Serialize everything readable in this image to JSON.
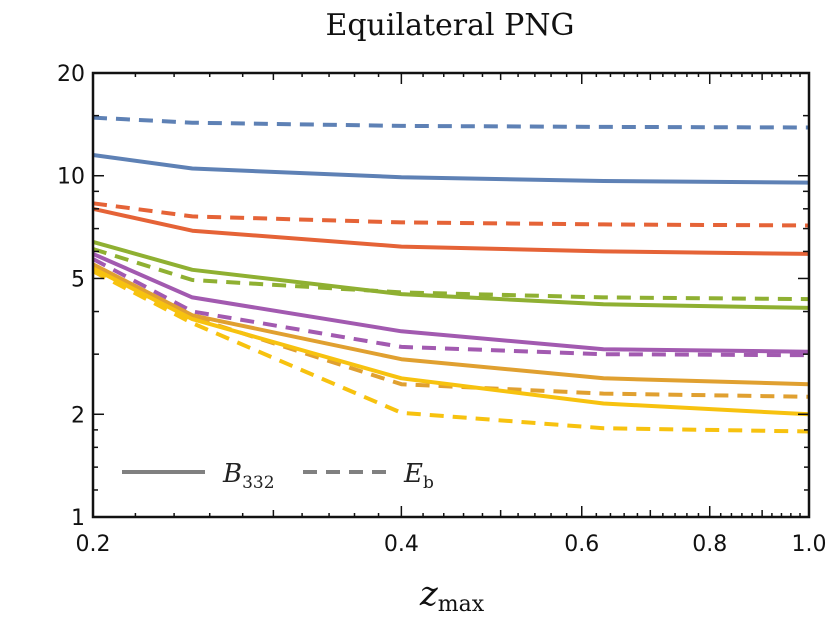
{
  "chart_data": {
    "type": "line",
    "title": "Equilateral PNG",
    "xlabel": "z",
    "xlabel_sub": "max",
    "ylabel": "",
    "xscale": "log",
    "yscale": "log",
    "xlim": [
      0.2,
      1.0
    ],
    "ylim": [
      1,
      20
    ],
    "x": [
      0.2,
      0.25,
      0.4,
      0.63,
      1.0
    ],
    "xticks": [
      0.2,
      0.4,
      0.6,
      0.8,
      1.0
    ],
    "xtick_labels": [
      "0.2",
      "0.4",
      "0.6",
      "0.8",
      "1.0"
    ],
    "yticks": [
      1,
      2,
      5,
      10,
      20
    ],
    "ytick_labels": [
      "1",
      "2",
      "5",
      "10",
      "20"
    ],
    "grid": false,
    "legend": {
      "placement": "bottom-left",
      "entries": [
        {
          "label": "B",
          "sub": "332",
          "style": "solid",
          "color": "#808080"
        },
        {
          "label": "E",
          "sub": "b",
          "style": "dashed",
          "color": "#808080"
        }
      ]
    },
    "series": [
      {
        "name": "blue B332",
        "color": "#5E81B5",
        "style": "solid",
        "values": [
          11.5,
          10.5,
          9.9,
          9.65,
          9.55
        ]
      },
      {
        "name": "blue Eb",
        "color": "#5E81B5",
        "style": "dashed",
        "values": [
          14.8,
          14.3,
          14.0,
          13.9,
          13.85
        ]
      },
      {
        "name": "red B332",
        "color": "#E56337",
        "style": "solid",
        "values": [
          8.0,
          6.9,
          6.2,
          6.0,
          5.9
        ]
      },
      {
        "name": "red Eb",
        "color": "#E56337",
        "style": "dashed",
        "values": [
          8.3,
          7.6,
          7.3,
          7.2,
          7.15
        ]
      },
      {
        "name": "green B332",
        "color": "#8FB032",
        "style": "solid",
        "values": [
          6.4,
          5.3,
          4.5,
          4.2,
          4.1
        ]
      },
      {
        "name": "green Eb",
        "color": "#8FB032",
        "style": "dashed",
        "values": [
          6.1,
          4.95,
          4.55,
          4.4,
          4.35
        ]
      },
      {
        "name": "purple B332",
        "color": "#A25AB0",
        "style": "solid",
        "values": [
          5.9,
          4.4,
          3.5,
          3.1,
          3.05
        ]
      },
      {
        "name": "purple Eb",
        "color": "#A25AB0",
        "style": "dashed",
        "values": [
          5.7,
          4.0,
          3.15,
          3.0,
          2.98
        ]
      },
      {
        "name": "orange B332",
        "color": "#E0A030",
        "style": "solid",
        "values": [
          5.5,
          3.9,
          2.9,
          2.55,
          2.45
        ]
      },
      {
        "name": "orange Eb",
        "color": "#E0A030",
        "style": "dashed",
        "values": [
          5.4,
          3.85,
          2.45,
          2.3,
          2.25
        ]
      },
      {
        "name": "yellow B332",
        "color": "#F7C20F",
        "style": "solid",
        "values": [
          5.35,
          3.8,
          2.55,
          2.15,
          2.0
        ]
      },
      {
        "name": "yellow Eb",
        "color": "#F7C20F",
        "style": "dashed",
        "values": [
          5.25,
          3.7,
          2.02,
          1.82,
          1.78
        ]
      }
    ]
  }
}
